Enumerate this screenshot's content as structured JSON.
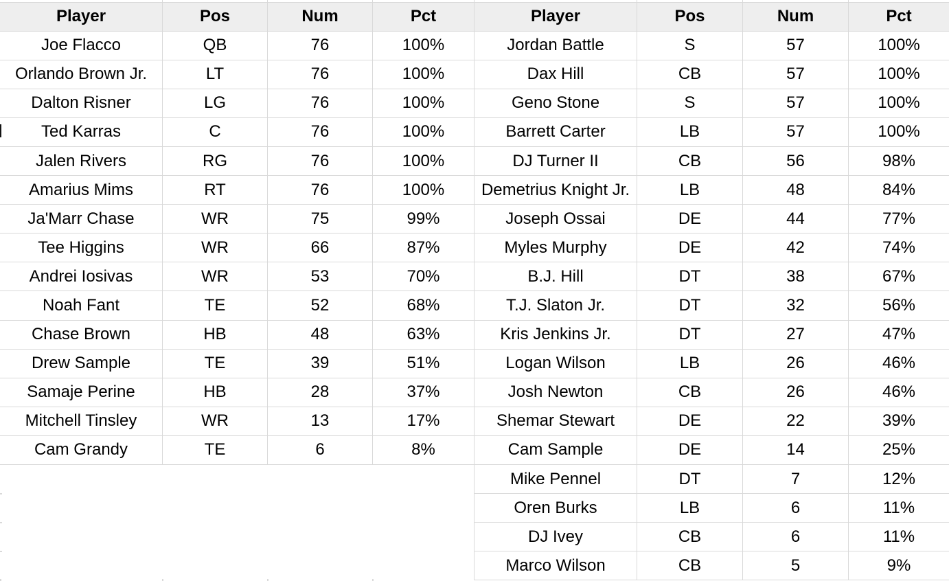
{
  "tables": [
    {
      "id": "left_table",
      "headers": [
        "Player",
        "Pos",
        "Num",
        "Pct"
      ],
      "rows": [
        [
          "Joe Flacco",
          "QB",
          "76",
          "100%"
        ],
        [
          "Orlando Brown Jr.",
          "LT",
          "76",
          "100%"
        ],
        [
          "Dalton Risner",
          "LG",
          "76",
          "100%"
        ],
        [
          "Ted Karras",
          "C",
          "76",
          "100%"
        ],
        [
          "Jalen Rivers",
          "RG",
          "76",
          "100%"
        ],
        [
          "Amarius Mims",
          "RT",
          "76",
          "100%"
        ],
        [
          "Ja'Marr Chase",
          "WR",
          "75",
          "99%"
        ],
        [
          "Tee Higgins",
          "WR",
          "66",
          "87%"
        ],
        [
          "Andrei Iosivas",
          "WR",
          "53",
          "70%"
        ],
        [
          "Noah Fant",
          "TE",
          "52",
          "68%"
        ],
        [
          "Chase Brown",
          "HB",
          "48",
          "63%"
        ],
        [
          "Drew Sample",
          "TE",
          "39",
          "51%"
        ],
        [
          "Samaje Perine",
          "HB",
          "28",
          "37%"
        ],
        [
          "Mitchell Tinsley",
          "WR",
          "13",
          "17%"
        ],
        [
          "Cam Grandy",
          "TE",
          "6",
          "8%"
        ]
      ]
    },
    {
      "id": "right_table",
      "headers": [
        "Player",
        "Pos",
        "Num",
        "Pct"
      ],
      "rows": [
        [
          "Jordan Battle",
          "S",
          "57",
          "100%"
        ],
        [
          "Dax Hill",
          "CB",
          "57",
          "100%"
        ],
        [
          "Geno Stone",
          "S",
          "57",
          "100%"
        ],
        [
          "Barrett Carter",
          "LB",
          "57",
          "100%"
        ],
        [
          "DJ Turner II",
          "CB",
          "56",
          "98%"
        ],
        [
          "Demetrius Knight Jr.",
          "LB",
          "48",
          "84%"
        ],
        [
          "Joseph Ossai",
          "DE",
          "44",
          "77%"
        ],
        [
          "Myles Murphy",
          "DE",
          "42",
          "74%"
        ],
        [
          "B.J. Hill",
          "DT",
          "38",
          "67%"
        ],
        [
          "T.J. Slaton Jr.",
          "DT",
          "32",
          "56%"
        ],
        [
          "Kris Jenkins Jr.",
          "DT",
          "27",
          "47%"
        ],
        [
          "Logan Wilson",
          "LB",
          "26",
          "46%"
        ],
        [
          "Josh Newton",
          "CB",
          "26",
          "46%"
        ],
        [
          "Shemar Stewart",
          "DE",
          "22",
          "39%"
        ],
        [
          "Cam Sample",
          "DE",
          "14",
          "25%"
        ],
        [
          "Mike Pennel",
          "DT",
          "7",
          "12%"
        ],
        [
          "Oren Burks",
          "LB",
          "6",
          "11%"
        ],
        [
          "DJ Ivey",
          "CB",
          "6",
          "11%"
        ],
        [
          "Marco Wilson",
          "CB",
          "5",
          "9%"
        ]
      ]
    }
  ],
  "colors": {
    "header_bg": "#eeeeee",
    "gridline": "#d9d9d9",
    "text": "#000000",
    "background": "#ffffff"
  }
}
